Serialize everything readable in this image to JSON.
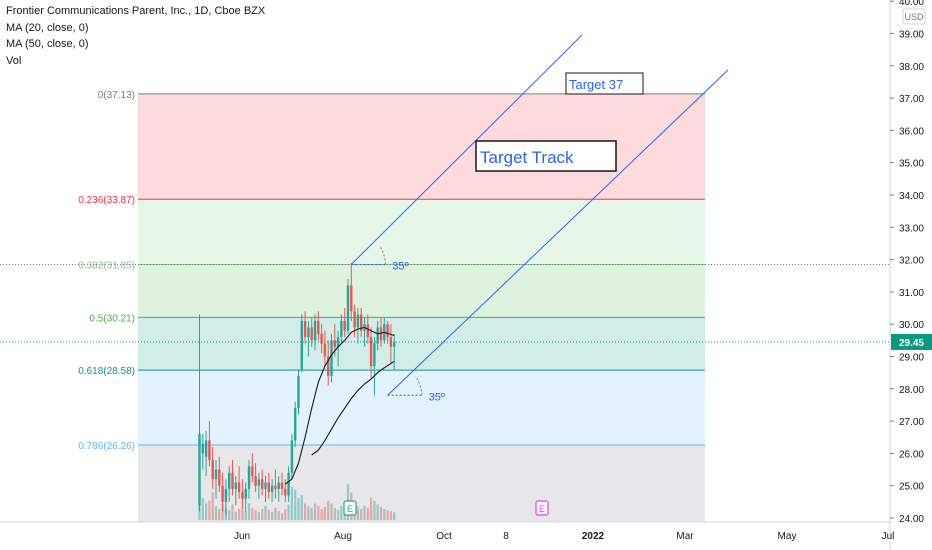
{
  "header": {
    "title": "Frontier Communications Parent, Inc., 1D, Cboe BZX",
    "indicators": [
      "MA (20, close, 0)",
      "MA (50, close, 0)",
      "Vol"
    ]
  },
  "chart_data": {
    "type": "candlestick",
    "currency": "USD",
    "last_price": "29.45",
    "y_ticks": [
      "24.00",
      "25.00",
      "26.00",
      "27.00",
      "28.00",
      "29.00",
      "30.00",
      "31.00",
      "32.00",
      "33.00",
      "34.00",
      "35.00",
      "36.00",
      "37.00",
      "38.00",
      "39.00",
      "40.00"
    ],
    "x_ticks": [
      "Jun",
      "Aug",
      "Oct",
      "8",
      "2022",
      "Mar",
      "May",
      "Jul"
    ],
    "fib_levels": [
      {
        "ratio": 0,
        "price": 37.13,
        "label": "0(37.13)",
        "color": "#787b86"
      },
      {
        "ratio": 0.236,
        "price": 33.87,
        "label": "0.236(33.87)",
        "color": "#f23645"
      },
      {
        "ratio": 0.382,
        "price": 31.85,
        "label": "0.382(31.85)",
        "color": "#81c784"
      },
      {
        "ratio": 0.5,
        "price": 30.21,
        "label": "0.5(30.21)",
        "color": "#4caf50"
      },
      {
        "ratio": 0.618,
        "price": 28.58,
        "label": "0.618(28.58)",
        "color": "#089981"
      },
      {
        "ratio": 0.786,
        "price": 26.26,
        "label": "0.786(26.26)",
        "color": "#64b5f6"
      }
    ],
    "fib_zone_colors": [
      "#f23645",
      "#81c784",
      "#4caf50",
      "#089981",
      "#64b5f6",
      "#787b86"
    ],
    "annotations": [
      {
        "text": "Target 37"
      },
      {
        "text": "Target Track"
      },
      {
        "text": "35º"
      },
      {
        "text": "35º"
      }
    ],
    "event_markers": [
      "E",
      "E"
    ],
    "colors": {
      "up": "#26a69a",
      "down": "#ef5350",
      "trendline": "#2962ff",
      "ma": "#131722",
      "price_label": "#089981"
    },
    "candles": [
      {
        "t": 0,
        "o": 24.4,
        "h": 30.3,
        "l": 24.2,
        "c": 26.6
      },
      {
        "t": 1,
        "o": 26.0,
        "h": 26.6,
        "l": 25.5,
        "c": 26.3
      },
      {
        "t": 2,
        "o": 25.9,
        "h": 26.7,
        "l": 25.3,
        "c": 26.4
      },
      {
        "t": 3,
        "o": 26.4,
        "h": 27.0,
        "l": 25.6,
        "c": 25.8
      },
      {
        "t": 4,
        "o": 25.8,
        "h": 26.2,
        "l": 24.9,
        "c": 25.2
      },
      {
        "t": 5,
        "o": 25.2,
        "h": 25.8,
        "l": 24.6,
        "c": 25.5
      },
      {
        "t": 6,
        "o": 25.5,
        "h": 25.9,
        "l": 24.8,
        "c": 25.0
      },
      {
        "t": 7,
        "o": 25.0,
        "h": 25.4,
        "l": 24.2,
        "c": 24.5
      },
      {
        "t": 8,
        "o": 24.5,
        "h": 25.2,
        "l": 24.1,
        "c": 24.9
      },
      {
        "t": 9,
        "o": 24.9,
        "h": 25.6,
        "l": 24.5,
        "c": 25.4
      },
      {
        "t": 10,
        "o": 25.4,
        "h": 25.8,
        "l": 24.7,
        "c": 24.9
      },
      {
        "t": 11,
        "o": 24.9,
        "h": 25.3,
        "l": 24.4,
        "c": 25.1
      },
      {
        "t": 12,
        "o": 25.1,
        "h": 25.6,
        "l": 24.6,
        "c": 24.8
      },
      {
        "t": 13,
        "o": 24.8,
        "h": 25.2,
        "l": 24.3,
        "c": 24.6
      },
      {
        "t": 14,
        "o": 24.6,
        "h": 25.1,
        "l": 24.2,
        "c": 24.9
      },
      {
        "t": 15,
        "o": 24.9,
        "h": 25.8,
        "l": 24.6,
        "c": 25.6
      },
      {
        "t": 16,
        "o": 25.6,
        "h": 26.0,
        "l": 25.1,
        "c": 25.3
      },
      {
        "t": 17,
        "o": 25.3,
        "h": 25.7,
        "l": 24.8,
        "c": 25.0
      },
      {
        "t": 18,
        "o": 25.0,
        "h": 25.4,
        "l": 24.6,
        "c": 25.2
      },
      {
        "t": 19,
        "o": 25.2,
        "h": 25.5,
        "l": 24.7,
        "c": 24.9
      },
      {
        "t": 20,
        "o": 24.9,
        "h": 25.3,
        "l": 24.5,
        "c": 25.1
      },
      {
        "t": 21,
        "o": 25.1,
        "h": 25.4,
        "l": 24.6,
        "c": 24.8
      },
      {
        "t": 22,
        "o": 24.8,
        "h": 25.2,
        "l": 24.5,
        "c": 25.0
      },
      {
        "t": 23,
        "o": 25.0,
        "h": 25.5,
        "l": 24.6,
        "c": 24.9
      },
      {
        "t": 24,
        "o": 24.9,
        "h": 25.3,
        "l": 24.5,
        "c": 25.1
      },
      {
        "t": 25,
        "o": 25.1,
        "h": 25.4,
        "l": 24.7,
        "c": 24.9
      },
      {
        "t": 26,
        "o": 24.9,
        "h": 25.2,
        "l": 24.5,
        "c": 24.7
      },
      {
        "t": 27,
        "o": 24.7,
        "h": 25.6,
        "l": 24.5,
        "c": 25.4
      },
      {
        "t": 28,
        "o": 25.4,
        "h": 26.6,
        "l": 25.2,
        "c": 26.4
      },
      {
        "t": 29,
        "o": 26.4,
        "h": 27.6,
        "l": 26.2,
        "c": 27.4
      },
      {
        "t": 30,
        "o": 27.4,
        "h": 28.6,
        "l": 27.2,
        "c": 28.4
      },
      {
        "t": 31,
        "o": 28.6,
        "h": 30.3,
        "l": 28.5,
        "c": 30.1
      },
      {
        "t": 32,
        "o": 30.1,
        "h": 30.4,
        "l": 29.4,
        "c": 29.6
      },
      {
        "t": 33,
        "o": 29.6,
        "h": 30.1,
        "l": 29.0,
        "c": 29.9
      },
      {
        "t": 34,
        "o": 29.9,
        "h": 30.2,
        "l": 29.3,
        "c": 29.5
      },
      {
        "t": 35,
        "o": 29.5,
        "h": 30.3,
        "l": 29.2,
        "c": 30.1
      },
      {
        "t": 36,
        "o": 30.1,
        "h": 30.4,
        "l": 29.5,
        "c": 29.7
      },
      {
        "t": 37,
        "o": 29.7,
        "h": 30.0,
        "l": 29.1,
        "c": 29.4
      },
      {
        "t": 38,
        "o": 29.4,
        "h": 29.8,
        "l": 28.7,
        "c": 29.0
      },
      {
        "t": 39,
        "o": 29.0,
        "h": 29.5,
        "l": 28.1,
        "c": 28.4
      },
      {
        "t": 40,
        "o": 28.4,
        "h": 29.7,
        "l": 28.2,
        "c": 29.5
      },
      {
        "t": 41,
        "o": 29.5,
        "h": 30.0,
        "l": 29.0,
        "c": 29.3
      },
      {
        "t": 42,
        "o": 29.3,
        "h": 29.8,
        "l": 28.7,
        "c": 29.6
      },
      {
        "t": 43,
        "o": 29.6,
        "h": 30.3,
        "l": 29.4,
        "c": 30.1
      },
      {
        "t": 44,
        "o": 30.1,
        "h": 30.5,
        "l": 29.6,
        "c": 29.8
      },
      {
        "t": 45,
        "o": 29.8,
        "h": 31.4,
        "l": 29.7,
        "c": 31.2
      },
      {
        "t": 46,
        "o": 31.2,
        "h": 31.9,
        "l": 30.1,
        "c": 30.4
      },
      {
        "t": 47,
        "o": 30.4,
        "h": 30.6,
        "l": 29.6,
        "c": 29.9
      },
      {
        "t": 48,
        "o": 29.9,
        "h": 30.5,
        "l": 29.4,
        "c": 30.3
      },
      {
        "t": 49,
        "o": 30.3,
        "h": 30.5,
        "l": 29.6,
        "c": 29.8
      },
      {
        "t": 50,
        "o": 29.8,
        "h": 30.2,
        "l": 29.3,
        "c": 30.0
      },
      {
        "t": 51,
        "o": 30.0,
        "h": 30.3,
        "l": 29.4,
        "c": 29.6
      },
      {
        "t": 52,
        "o": 29.6,
        "h": 29.9,
        "l": 28.3,
        "c": 28.7
      },
      {
        "t": 53,
        "o": 28.7,
        "h": 29.6,
        "l": 27.8,
        "c": 29.4
      },
      {
        "t": 54,
        "o": 29.4,
        "h": 30.1,
        "l": 29.2,
        "c": 29.9
      },
      {
        "t": 55,
        "o": 29.9,
        "h": 30.2,
        "l": 29.3,
        "c": 29.5
      },
      {
        "t": 56,
        "o": 29.5,
        "h": 30.2,
        "l": 29.4,
        "c": 30.0
      },
      {
        "t": 57,
        "o": 30.0,
        "h": 30.1,
        "l": 29.4,
        "c": 29.6
      },
      {
        "t": 58,
        "o": 29.6,
        "h": 30.0,
        "l": 28.8,
        "c": 29.3
      },
      {
        "t": 59,
        "o": 29.3,
        "h": 29.7,
        "l": 28.6,
        "c": 29.45
      }
    ],
    "ma20": [
      {
        "t": 26,
        "v": 25.05
      },
      {
        "t": 28,
        "v": 25.2
      },
      {
        "t": 30,
        "v": 25.7
      },
      {
        "t": 32,
        "v": 26.5
      },
      {
        "t": 34,
        "v": 27.4
      },
      {
        "t": 36,
        "v": 28.2
      },
      {
        "t": 38,
        "v": 28.7
      },
      {
        "t": 40,
        "v": 29.05
      },
      {
        "t": 42,
        "v": 29.3
      },
      {
        "t": 44,
        "v": 29.5
      },
      {
        "t": 46,
        "v": 29.75
      },
      {
        "t": 48,
        "v": 29.85
      },
      {
        "t": 50,
        "v": 29.9
      },
      {
        "t": 52,
        "v": 29.8
      },
      {
        "t": 54,
        "v": 29.7
      },
      {
        "t": 56,
        "v": 29.75
      },
      {
        "t": 59,
        "v": 29.65
      }
    ],
    "ma50": [
      {
        "t": 34,
        "v": 25.95
      },
      {
        "t": 36,
        "v": 26.1
      },
      {
        "t": 38,
        "v": 26.4
      },
      {
        "t": 40,
        "v": 26.75
      },
      {
        "t": 42,
        "v": 27.1
      },
      {
        "t": 44,
        "v": 27.4
      },
      {
        "t": 46,
        "v": 27.7
      },
      {
        "t": 48,
        "v": 27.95
      },
      {
        "t": 50,
        "v": 28.15
      },
      {
        "t": 52,
        "v": 28.3
      },
      {
        "t": 54,
        "v": 28.5
      },
      {
        "t": 56,
        "v": 28.65
      },
      {
        "t": 59,
        "v": 28.85
      }
    ],
    "volume": [
      {
        "t": 0,
        "v": 100
      },
      {
        "t": 1,
        "v": 40
      },
      {
        "t": 2,
        "v": 30
      },
      {
        "t": 3,
        "v": 35
      },
      {
        "t": 4,
        "v": 50
      },
      {
        "t": 5,
        "v": 25
      },
      {
        "t": 6,
        "v": 20
      },
      {
        "t": 7,
        "v": 30
      },
      {
        "t": 8,
        "v": 22
      },
      {
        "t": 9,
        "v": 18
      },
      {
        "t": 10,
        "v": 28
      },
      {
        "t": 11,
        "v": 15
      },
      {
        "t": 12,
        "v": 20
      },
      {
        "t": 13,
        "v": 24
      },
      {
        "t": 14,
        "v": 16
      },
      {
        "t": 15,
        "v": 30
      },
      {
        "t": 16,
        "v": 22
      },
      {
        "t": 17,
        "v": 18
      },
      {
        "t": 18,
        "v": 14
      },
      {
        "t": 19,
        "v": 20
      },
      {
        "t": 20,
        "v": 26
      },
      {
        "t": 21,
        "v": 18
      },
      {
        "t": 22,
        "v": 14
      },
      {
        "t": 23,
        "v": 22
      },
      {
        "t": 24,
        "v": 16
      },
      {
        "t": 25,
        "v": 12
      },
      {
        "t": 26,
        "v": 20
      },
      {
        "t": 27,
        "v": 28
      },
      {
        "t": 28,
        "v": 60
      },
      {
        "t": 29,
        "v": 55
      },
      {
        "t": 30,
        "v": 40
      },
      {
        "t": 31,
        "v": 45
      },
      {
        "t": 32,
        "v": 30
      },
      {
        "t": 33,
        "v": 25
      },
      {
        "t": 34,
        "v": 22
      },
      {
        "t": 35,
        "v": 30
      },
      {
        "t": 36,
        "v": 26
      },
      {
        "t": 37,
        "v": 20
      },
      {
        "t": 38,
        "v": 24
      },
      {
        "t": 39,
        "v": 35
      },
      {
        "t": 40,
        "v": 30
      },
      {
        "t": 41,
        "v": 22
      },
      {
        "t": 42,
        "v": 18
      },
      {
        "t": 43,
        "v": 26
      },
      {
        "t": 44,
        "v": 20
      },
      {
        "t": 45,
        "v": 65
      },
      {
        "t": 46,
        "v": 50
      },
      {
        "t": 47,
        "v": 28
      },
      {
        "t": 48,
        "v": 24
      },
      {
        "t": 49,
        "v": 20
      },
      {
        "t": 50,
        "v": 26
      },
      {
        "t": 51,
        "v": 22
      },
      {
        "t": 52,
        "v": 40
      },
      {
        "t": 53,
        "v": 35
      },
      {
        "t": 54,
        "v": 28
      },
      {
        "t": 55,
        "v": 24
      },
      {
        "t": 56,
        "v": 20
      },
      {
        "t": 57,
        "v": 18
      },
      {
        "t": 58,
        "v": 16
      },
      {
        "t": 59,
        "v": 14
      }
    ]
  }
}
